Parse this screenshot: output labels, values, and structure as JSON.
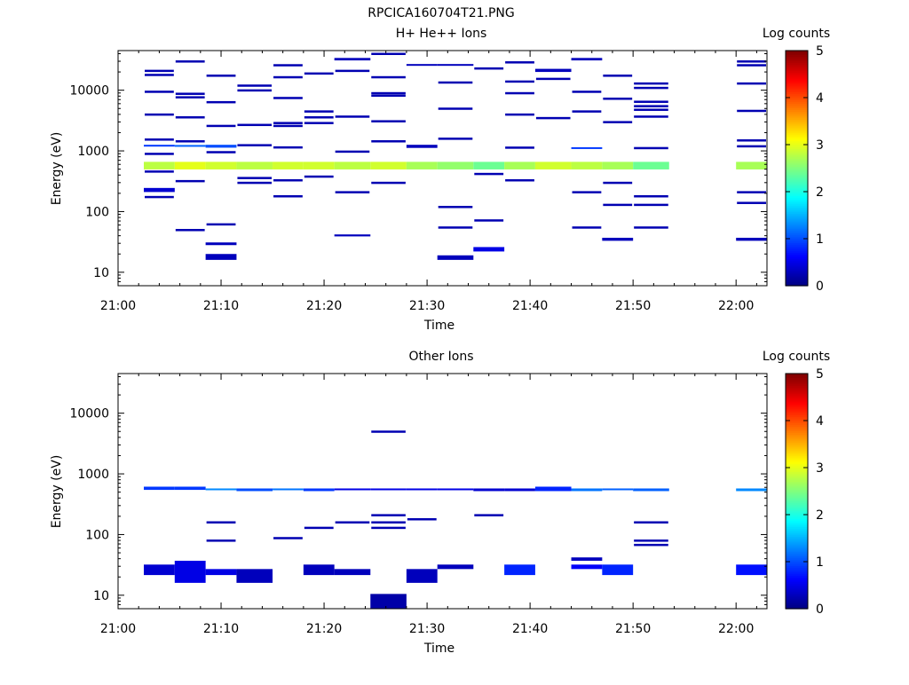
{
  "page_title": "RPCICA160704T21.PNG",
  "colorscale": {
    "label": "Log counts",
    "range": [
      0,
      5
    ],
    "tick_labels": [
      "0",
      "1",
      "2",
      "3",
      "4",
      "5"
    ],
    "stops": [
      "#00007f",
      "#0000ff",
      "#007fff",
      "#00ffff",
      "#7fff7f",
      "#ffff00",
      "#ff7f00",
      "#ff0000",
      "#7f0000"
    ]
  },
  "chart_data": [
    {
      "type": "heatmap",
      "title": "H+ He++ Ions",
      "xlabel": "Time",
      "ylabel": "Energy (eV)",
      "x_scale": "time",
      "y_scale": "log",
      "xlim": [
        "21:00",
        "22:03"
      ],
      "ylim": [
        6,
        45000
      ],
      "x_tick_labels": [
        "21:00",
        "21:10",
        "21:20",
        "21:30",
        "21:40",
        "21:50",
        "22:00"
      ],
      "y_tick_labels": [
        "10",
        "100",
        "1000",
        "10000"
      ],
      "cells": [
        {
          "t_start": "21:02.5",
          "t_end": "21:05.5",
          "e_low": 495,
          "e_high": 660,
          "log_counts": 2.8
        },
        {
          "t_start": "21:05.5",
          "t_end": "21:08.5",
          "e_low": 495,
          "e_high": 660,
          "log_counts": 3.0
        },
        {
          "t_start": "21:08.5",
          "t_end": "21:11.5",
          "e_low": 495,
          "e_high": 660,
          "log_counts": 2.9
        },
        {
          "t_start": "21:11.5",
          "t_end": "21:15",
          "e_low": 495,
          "e_high": 660,
          "log_counts": 2.8
        },
        {
          "t_start": "21:15",
          "t_end": "21:18",
          "e_low": 495,
          "e_high": 660,
          "log_counts": 2.9
        },
        {
          "t_start": "21:18",
          "t_end": "21:21",
          "e_low": 495,
          "e_high": 660,
          "log_counts": 2.9
        },
        {
          "t_start": "21:21",
          "t_end": "21:24.5",
          "e_low": 495,
          "e_high": 660,
          "log_counts": 2.8
        },
        {
          "t_start": "21:24.5",
          "t_end": "21:28",
          "e_low": 495,
          "e_high": 660,
          "log_counts": 2.9
        },
        {
          "t_start": "21:28",
          "t_end": "21:31",
          "e_low": 495,
          "e_high": 660,
          "log_counts": 2.7
        },
        {
          "t_start": "21:31",
          "t_end": "21:34.5",
          "e_low": 495,
          "e_high": 660,
          "log_counts": 2.6
        },
        {
          "t_start": "21:34.5",
          "t_end": "21:37.5",
          "e_low": 495,
          "e_high": 660,
          "log_counts": 2.4
        },
        {
          "t_start": "21:37.5",
          "t_end": "21:40.5",
          "e_low": 495,
          "e_high": 660,
          "log_counts": 2.7
        },
        {
          "t_start": "21:40.5",
          "t_end": "21:44",
          "e_low": 495,
          "e_high": 660,
          "log_counts": 2.9
        },
        {
          "t_start": "21:44",
          "t_end": "21:47",
          "e_low": 495,
          "e_high": 660,
          "log_counts": 2.8
        },
        {
          "t_start": "21:47",
          "t_end": "21:50",
          "e_low": 495,
          "e_high": 660,
          "log_counts": 2.7
        },
        {
          "t_start": "21:50",
          "t_end": "21:53.5",
          "e_low": 495,
          "e_high": 660,
          "log_counts": 2.4
        },
        {
          "t_start": "22:00",
          "t_end": "22:03",
          "e_low": 495,
          "e_high": 660,
          "log_counts": 2.7
        },
        {
          "t_start": "21:02.5",
          "t_end": "21:05.5",
          "e_low": 1180,
          "e_high": 1260,
          "log_counts": 0.9
        },
        {
          "t_start": "21:08.5",
          "t_end": "21:11.5",
          "e_low": 1130,
          "e_high": 1260,
          "log_counts": 1.0
        },
        {
          "t_start": "21:05.5",
          "t_end": "21:08.5",
          "e_low": 1190,
          "e_high": 1250,
          "log_counts": 1.1
        },
        {
          "t_start": "21:28",
          "t_end": "21:31",
          "e_low": 1120,
          "e_high": 1260,
          "log_counts": 0.3
        },
        {
          "t_start": "21:44",
          "t_end": "21:47",
          "e_low": 1110,
          "e_high": 1150,
          "log_counts": 0.9
        },
        {
          "t_start": "21:02.5",
          "t_end": "21:05.5",
          "e_low": 210,
          "e_high": 245,
          "log_counts": 0.4
        },
        {
          "t_start": "21:08.5",
          "t_end": "21:11.5",
          "e_low": 16,
          "e_high": 20,
          "log_counts": 0.3
        },
        {
          "t_start": "21:08.5",
          "t_end": "21:11.5",
          "e_low": 28,
          "e_high": 31,
          "log_counts": 0.3
        },
        {
          "t_start": "21:31",
          "t_end": "21:34.5",
          "e_low": 16,
          "e_high": 19,
          "log_counts": 0.3
        },
        {
          "t_start": "21:34.5",
          "t_end": "21:37.5",
          "e_low": 22,
          "e_high": 26,
          "log_counts": 0.5
        },
        {
          "t_start": "21:21",
          "t_end": "21:24.5",
          "e_low": 39,
          "e_high": 42,
          "log_counts": 0.3
        },
        {
          "t_start": "21:47",
          "t_end": "21:50",
          "e_low": 33,
          "e_high": 37,
          "log_counts": 0.3
        },
        {
          "t_start": "22:00",
          "t_end": "22:03",
          "e_low": 33,
          "e_high": 37,
          "log_counts": 0.3
        },
        {
          "t_start": "21:21",
          "t_end": "21:24.5",
          "e_low": 31000,
          "e_high": 34000,
          "log_counts": 0.3
        },
        {
          "t_start": "21:44",
          "t_end": "21:47",
          "e_low": 31000,
          "e_high": 34000,
          "log_counts": 0.3
        },
        {
          "t_start": "21:40.5",
          "t_end": "21:44",
          "e_low": 20000,
          "e_high": 22500,
          "log_counts": 0.3
        },
        {
          "t_start": "21:28",
          "t_end": "21:31",
          "e_low": 25500,
          "e_high": 27000,
          "log_counts": 0.3
        },
        {
          "t_start": "21:31",
          "t_end": "21:34.5",
          "e_low": 25500,
          "e_high": 27000,
          "log_counts": 0.3
        }
      ],
      "lines": [
        {
          "t_start": "21:02.5",
          "t_end": "21:05.5",
          "energies": [
            21000,
            18000,
            9500,
            4000,
            1550,
            900,
            460,
            175
          ]
        },
        {
          "t_start": "21:05.5",
          "t_end": "21:08.5",
          "energies": [
            30000,
            8800,
            7700,
            3600,
            1450,
            320,
            50
          ]
        },
        {
          "t_start": "21:08.5",
          "t_end": "21:11.5",
          "energies": [
            17500,
            6400,
            2600,
            960,
            62
          ]
        },
        {
          "t_start": "21:11.5",
          "t_end": "21:15",
          "energies": [
            12000,
            10000,
            2700,
            1250,
            360,
            300
          ]
        },
        {
          "t_start": "21:15",
          "t_end": "21:18",
          "energies": [
            26000,
            16500,
            7500,
            2900,
            2600,
            1150,
            330,
            180
          ]
        },
        {
          "t_start": "21:18",
          "t_end": "21:21",
          "energies": [
            19000,
            4500,
            3600,
            2900,
            380
          ]
        },
        {
          "t_start": "21:21",
          "t_end": "21:24.5",
          "energies": [
            21000,
            3700,
            980,
            210
          ]
        },
        {
          "t_start": "21:24.5",
          "t_end": "21:28",
          "energies": [
            40000,
            16500,
            9000,
            8200,
            3100,
            1450,
            300
          ]
        },
        {
          "t_start": "21:28",
          "t_end": "21:31",
          "energies": []
        },
        {
          "t_start": "21:31",
          "t_end": "21:34.5",
          "energies": [
            13500,
            5000,
            1600,
            120,
            55
          ]
        },
        {
          "t_start": "21:34.5",
          "t_end": "21:37.5",
          "energies": [
            23000,
            420,
            72
          ]
        },
        {
          "t_start": "21:37.5",
          "t_end": "21:40.5",
          "energies": [
            29000,
            14000,
            9000,
            4000,
            1140,
            330
          ]
        },
        {
          "t_start": "21:40.5",
          "t_end": "21:44",
          "energies": [
            15500,
            3500
          ]
        },
        {
          "t_start": "21:44",
          "t_end": "21:47",
          "energies": [
            9500,
            4500,
            210,
            55
          ]
        },
        {
          "t_start": "21:47",
          "t_end": "21:50",
          "energies": [
            17500,
            7300,
            3000,
            300,
            130
          ]
        },
        {
          "t_start": "21:50",
          "t_end": "21:53.5",
          "energies": [
            13000,
            11000,
            6500,
            5500,
            4800,
            3700,
            1120,
            180,
            130,
            55
          ]
        },
        {
          "t_start": "22:00",
          "t_end": "22:03",
          "energies": [
            30000,
            26000,
            13000,
            4600,
            1500,
            1200,
            210,
            140
          ]
        }
      ]
    },
    {
      "type": "heatmap",
      "title": "Other Ions",
      "xlabel": "Time",
      "ylabel": "Energy (eV)",
      "x_scale": "time",
      "y_scale": "log",
      "xlim": [
        "21:00",
        "22:03"
      ],
      "ylim": [
        6,
        45000
      ],
      "x_tick_labels": [
        "21:00",
        "21:10",
        "21:20",
        "21:30",
        "21:40",
        "21:50",
        "22:00"
      ],
      "y_tick_labels": [
        "10",
        "100",
        "1000",
        "10000"
      ],
      "cells": [
        {
          "t_start": "21:02.5",
          "t_end": "21:05.5",
          "e_low": 545,
          "e_high": 615,
          "log_counts": 0.9
        },
        {
          "t_start": "21:05.5",
          "t_end": "21:08.5",
          "e_low": 545,
          "e_high": 615,
          "log_counts": 0.9
        },
        {
          "t_start": "21:08.5",
          "t_end": "21:11.5",
          "e_low": 545,
          "e_high": 575,
          "log_counts": 1.3
        },
        {
          "t_start": "21:11.5",
          "t_end": "21:15",
          "e_low": 520,
          "e_high": 575,
          "log_counts": 1.0
        },
        {
          "t_start": "21:15",
          "t_end": "21:18",
          "e_low": 545,
          "e_high": 575,
          "log_counts": 1.2
        },
        {
          "t_start": "21:18",
          "t_end": "21:21",
          "e_low": 520,
          "e_high": 575,
          "log_counts": 0.9
        },
        {
          "t_start": "21:21",
          "t_end": "21:24.5",
          "e_low": 545,
          "e_high": 575,
          "log_counts": 0.5
        },
        {
          "t_start": "21:24.5",
          "t_end": "21:28",
          "e_low": 545,
          "e_high": 575,
          "log_counts": 0.5
        },
        {
          "t_start": "21:28",
          "t_end": "21:31",
          "e_low": 545,
          "e_high": 575,
          "log_counts": 0.5
        },
        {
          "t_start": "21:31",
          "t_end": "21:34.5",
          "e_low": 545,
          "e_high": 575,
          "log_counts": 0.5
        },
        {
          "t_start": "21:34.5",
          "t_end": "21:37.5",
          "e_low": 520,
          "e_high": 575,
          "log_counts": 0.4
        },
        {
          "t_start": "21:37.5",
          "t_end": "21:40.5",
          "e_low": 520,
          "e_high": 575,
          "log_counts": 0.4
        },
        {
          "t_start": "21:40.5",
          "t_end": "21:44",
          "e_low": 520,
          "e_high": 615,
          "log_counts": 0.8
        },
        {
          "t_start": "21:44",
          "t_end": "21:47",
          "e_low": 520,
          "e_high": 575,
          "log_counts": 1.2
        },
        {
          "t_start": "21:47",
          "t_end": "21:50",
          "e_low": 545,
          "e_high": 575,
          "log_counts": 1.1
        },
        {
          "t_start": "21:50",
          "t_end": "21:53.5",
          "e_low": 520,
          "e_high": 575,
          "log_counts": 1.1
        },
        {
          "t_start": "22:00",
          "t_end": "22:03",
          "e_low": 520,
          "e_high": 575,
          "log_counts": 1.3
        },
        {
          "t_start": "21:02.5",
          "t_end": "21:05.5",
          "e_low": 21.5,
          "e_high": 32,
          "log_counts": 0.4
        },
        {
          "t_start": "21:05.5",
          "t_end": "21:08.5",
          "e_low": 16,
          "e_high": 37,
          "log_counts": 0.5
        },
        {
          "t_start": "21:08.5",
          "t_end": "21:11.5",
          "e_low": 21.5,
          "e_high": 27,
          "log_counts": 0.5
        },
        {
          "t_start": "21:11.5",
          "t_end": "21:15",
          "e_low": 16,
          "e_high": 27,
          "log_counts": 0.3
        },
        {
          "t_start": "21:18",
          "t_end": "21:21",
          "e_low": 21.5,
          "e_high": 32,
          "log_counts": 0.3
        },
        {
          "t_start": "21:21",
          "t_end": "21:24.5",
          "e_low": 21.5,
          "e_high": 27,
          "log_counts": 0.3
        },
        {
          "t_start": "21:24.5",
          "t_end": "21:28",
          "e_low": 6,
          "e_high": 10.5,
          "log_counts": 0.2
        },
        {
          "t_start": "21:28",
          "t_end": "21:31",
          "e_low": 16,
          "e_high": 27,
          "log_counts": 0.3
        },
        {
          "t_start": "21:31",
          "t_end": "21:34.5",
          "e_low": 27,
          "e_high": 32,
          "log_counts": 0.3
        },
        {
          "t_start": "21:37.5",
          "t_end": "21:40.5",
          "e_low": 21.5,
          "e_high": 32,
          "log_counts": 0.8
        },
        {
          "t_start": "21:44",
          "t_end": "21:47",
          "e_low": 27,
          "e_high": 32,
          "log_counts": 0.6
        },
        {
          "t_start": "21:44",
          "t_end": "21:47",
          "e_low": 37,
          "e_high": 42,
          "log_counts": 0.3
        },
        {
          "t_start": "21:47",
          "t_end": "21:50",
          "e_low": 21.5,
          "e_high": 32,
          "log_counts": 0.8
        },
        {
          "t_start": "22:00",
          "t_end": "22:03",
          "e_low": 21.5,
          "e_high": 32,
          "log_counts": 0.7
        }
      ],
      "lines": [
        {
          "t_start": "21:08.5",
          "t_end": "21:11.5",
          "energies": [
            160,
            80
          ]
        },
        {
          "t_start": "21:15",
          "t_end": "21:18",
          "energies": [
            88
          ]
        },
        {
          "t_start": "21:18",
          "t_end": "21:21",
          "energies": [
            130
          ]
        },
        {
          "t_start": "21:21",
          "t_end": "21:24.5",
          "energies": [
            160
          ]
        },
        {
          "t_start": "21:24.5",
          "t_end": "21:28",
          "energies": [
            5000,
            210,
            160,
            130
          ]
        },
        {
          "t_start": "21:28",
          "t_end": "21:31",
          "energies": [
            180
          ]
        },
        {
          "t_start": "21:34.5",
          "t_end": "21:37.5",
          "energies": [
            210
          ]
        },
        {
          "t_start": "21:50",
          "t_end": "21:53.5",
          "energies": [
            160,
            80,
            68
          ]
        }
      ]
    }
  ]
}
